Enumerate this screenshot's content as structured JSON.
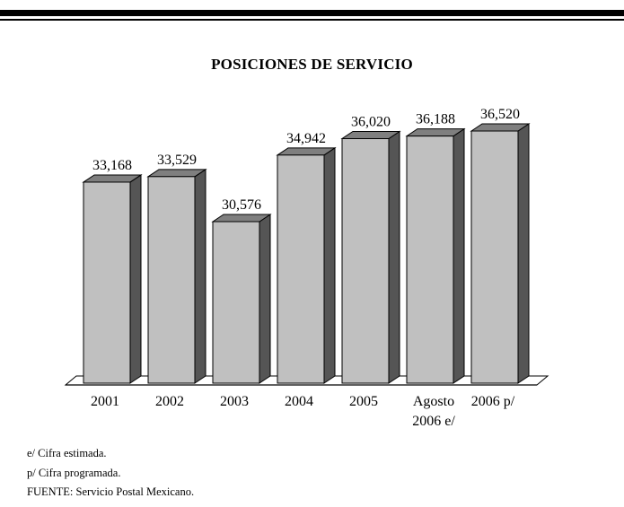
{
  "chart_data": {
    "type": "bar",
    "title": "POSICIONES DE SERVICIO",
    "categories": [
      [
        "2001"
      ],
      [
        "2002"
      ],
      [
        "2003"
      ],
      [
        "2004"
      ],
      [
        "2005"
      ],
      [
        "Agosto",
        "2006 e/"
      ],
      [
        "2006 p/"
      ]
    ],
    "values": [
      33168,
      33529,
      30576,
      34942,
      36020,
      36188,
      36520
    ],
    "value_labels": [
      "33,168",
      "33,529",
      "30,576",
      "34,942",
      "36,020",
      "36,188",
      "36,520"
    ],
    "grid": false,
    "legend": "none"
  },
  "colors": {
    "bar_front": "#c0c0c0",
    "bar_side": "#555555",
    "bar_top": "#7f7f7f",
    "floor": "#ffffff",
    "stroke": "#000000"
  },
  "footnotes": {
    "estimated": "e/ Cifra estimada.",
    "programmed": "p/ Cifra programada.",
    "source": "FUENTE: Servicio Postal Mexicano."
  }
}
